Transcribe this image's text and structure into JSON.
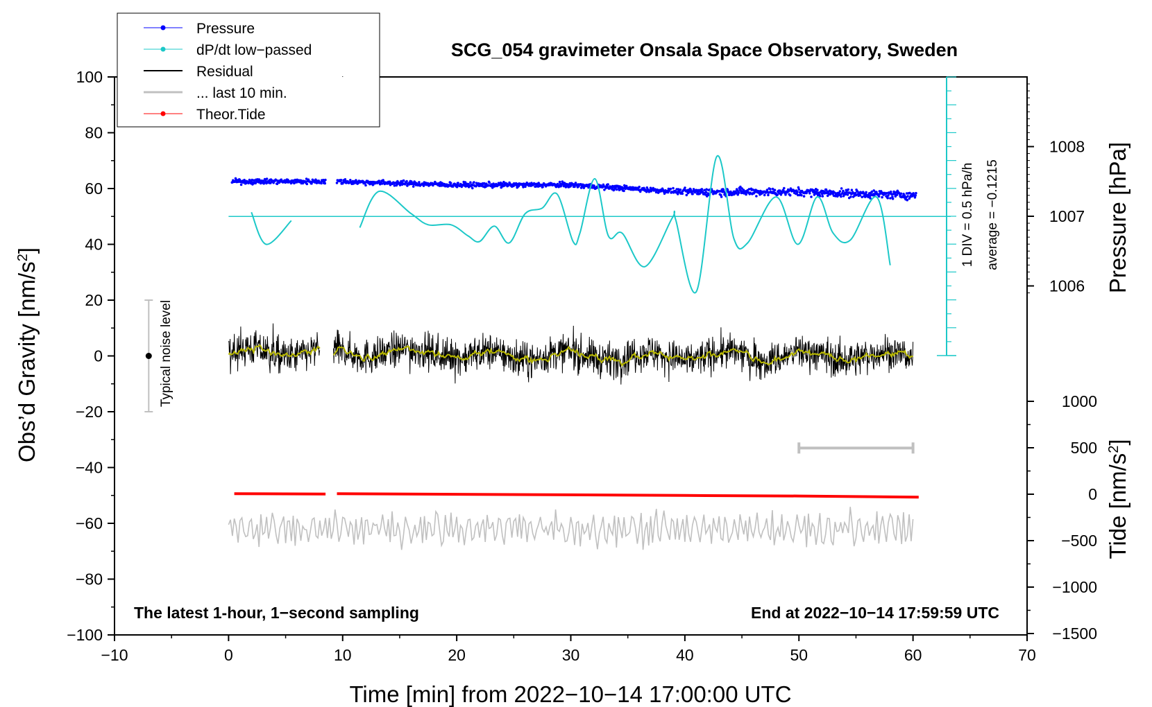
{
  "chart_data": {
    "type": "line",
    "title": "SCG_054 gravimeter Onsala Space Observatory, Sweden",
    "xlabel": "Time [min] from 2022−10−14 17:00:00 UTC",
    "ylabel": "Obs’d Gravity [nm/s²]",
    "ylabel_parts": {
      "main": "Obs’d Gravity [nm/s",
      "sup": "2",
      "end": "]"
    },
    "xlim": [
      -10,
      70
    ],
    "ylim": [
      -100,
      100
    ],
    "x_ticks": [
      "−10",
      "0",
      "10",
      "20",
      "30",
      "40",
      "50",
      "60",
      "70"
    ],
    "y_ticks": [
      "−100",
      "−80",
      "−60",
      "−40",
      "−20",
      "0",
      "20",
      "40",
      "60",
      "80",
      "100"
    ],
    "pressure_axis": {
      "label": "Pressure [hPa]",
      "ticks": [
        {
          "value": 1006,
          "label": "1006"
        },
        {
          "value": 1007,
          "label": "1007"
        },
        {
          "value": 1008,
          "label": "1008"
        }
      ]
    },
    "tide_axis": {
      "label_main": "Tide [nm/s",
      "label_sup": "2",
      "label_end": "]",
      "ticks": [
        {
          "value": -1500,
          "label": "−1500"
        },
        {
          "value": -1000,
          "label": "−1000"
        },
        {
          "value": -500,
          "label": "−500"
        },
        {
          "value": 0,
          "label": "0"
        },
        {
          "value": 500,
          "label": "500"
        },
        {
          "value": 1000,
          "label": "1000"
        }
      ]
    },
    "dpdt_scale": {
      "label": "1 DIV = 0.5 hPa/h",
      "average": "average = −0.1215"
    },
    "legend": [
      {
        "name": "Pressure",
        "color": "#0000ff",
        "marker": true
      },
      {
        "name": "dP/dt low−passed",
        "color": "#00c8c8",
        "marker": true
      },
      {
        "name": "Residual",
        "color": "#000000",
        "marker": false
      },
      {
        "name": "... last 10 min.",
        "color": "#c0c0c0",
        "marker": false
      },
      {
        "name": "Theor.Tide",
        "color": "#ff0000",
        "marker": true
      }
    ],
    "series": [
      {
        "name": "Pressure",
        "unit": "hPa",
        "x": [
          0,
          8.5,
          9.5,
          20,
          30,
          40,
          50,
          60
        ],
        "values": [
          1007.5,
          1007.5,
          1007.5,
          1007.45,
          1007.45,
          1007.35,
          1007.35,
          1007.3
        ]
      },
      {
        "name": "dP/dt low−passed",
        "unit": "nm/s² (plot scale)",
        "x": [
          2,
          3.3,
          5.5,
          11.5,
          13.2,
          16,
          17.5,
          19.5,
          21,
          22,
          23.3,
          24.6,
          26,
          27.5,
          28.8,
          30.2,
          30.8,
          32.1,
          33.3,
          34.5,
          36.5,
          38.9,
          39.2,
          41,
          42.8,
          44.3,
          45.5,
          48,
          49.9,
          51.6,
          53,
          54.5,
          56.8,
          58
        ],
        "values": [
          51.5,
          40,
          48.5,
          46,
          59,
          51,
          47,
          47,
          43,
          41,
          46.5,
          40.5,
          51,
          53,
          58,
          41,
          44,
          63.5,
          43,
          44,
          32,
          49.5,
          48.8,
          23,
          71.5,
          42,
          40.5,
          57,
          40,
          57,
          44,
          41.5,
          57,
          32.5
        ]
      },
      {
        "name": "Residual",
        "unit": "nm/s²",
        "x": [
          0,
          8,
          9.2,
          60
        ],
        "values": [
          0,
          0,
          0,
          0
        ]
      },
      {
        "name": "... last 10 min.",
        "unit": "nm/s² (offset)",
        "x": [
          0,
          60
        ],
        "values": [
          -62,
          -62
        ]
      },
      {
        "name": "Theor.Tide",
        "unit": "nm/s²",
        "x": [
          0.5,
          8.5,
          9.5,
          20,
          30,
          40,
          50,
          60.5
        ],
        "values": [
          -49.4,
          -49.5,
          -49.4,
          -49.6,
          -49.8,
          -50.0,
          -50.2,
          -50.6
        ]
      }
    ],
    "noise_bar": {
      "label": "Typical noise level",
      "x": -7,
      "center": 0,
      "range": [
        -20,
        20
      ]
    },
    "last_10_min_bracket": {
      "x_range": [
        50,
        60
      ],
      "y": -33
    },
    "reference_line_y": 50,
    "annotations": {
      "bottom_left": "The latest 1-hour, 1−second sampling",
      "bottom_right": "End at 2022−10−14 17:59:59 UTC"
    }
  },
  "colors": {
    "pressure": "#0000ff",
    "dpdt": "#1cc8c8",
    "residual": "#000000",
    "smooth": "#b8b800",
    "last10": "#c0c0c0",
    "tide": "#ff0000"
  }
}
